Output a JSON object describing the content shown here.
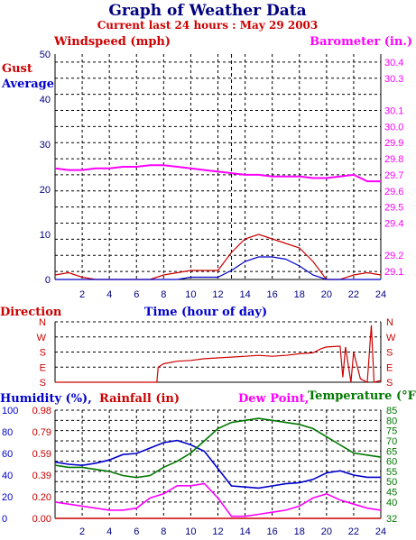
{
  "header": {
    "title": "Graph of Weather Data",
    "subtitle": "Current last 24 hours : May 29 2003"
  },
  "colors": {
    "navy": "#000080",
    "red": "#cc0000",
    "magenta": "#ff00ff",
    "blue": "#0000cc",
    "green": "#007700"
  },
  "chart_data": [
    {
      "type": "line",
      "title": "",
      "left_axis_label": "Windspeed (mph)",
      "right_axis_label": "Barometer (in.)",
      "gust_label": "Gust",
      "average_label": "Average",
      "xlabel": "Time (hour of day)",
      "xlim": [
        0,
        24
      ],
      "xticks": [
        "2",
        "4",
        "6",
        "8",
        "10",
        "12",
        "14",
        "16",
        "18",
        "20",
        "22",
        "24"
      ],
      "ylim_left": [
        0,
        50
      ],
      "yticks_left": [
        "0",
        "10",
        "20",
        "30",
        "40",
        "50"
      ],
      "ylim_right": [
        29.05,
        30.45
      ],
      "yticks_right": [
        "29.1",
        "29.2",
        "29.4",
        "29.5",
        "29.6",
        "29.7",
        "29.8",
        "29.9",
        "30.0",
        "30.1",
        "30.3",
        "30.4"
      ],
      "ytick_values_right": [
        29.1,
        29.2,
        29.3,
        29.4,
        29.5,
        29.6,
        29.7,
        29.8,
        29.9,
        30.0,
        30.1,
        30.2,
        30.3,
        30.4
      ],
      "ytick_labels_right": [
        "29.1",
        "29.2",
        "",
        "29.4",
        "29.5",
        "29.6",
        "29.7",
        "29.8",
        "29.9",
        "30.0",
        "30.1",
        "",
        "30.3",
        "30.4"
      ],
      "current_time": 13,
      "series": [
        {
          "name": "Gust",
          "axis": "left",
          "x": [
            0,
            1,
            2,
            3,
            4,
            5,
            6,
            7,
            8,
            9,
            10,
            11,
            12,
            13,
            14,
            15,
            16,
            17,
            18,
            19,
            20,
            21,
            22,
            23,
            24
          ],
          "values": [
            1,
            1.5,
            0.5,
            0,
            0,
            0,
            0,
            0,
            1,
            1.5,
            2,
            2,
            2,
            6,
            9,
            10,
            9,
            8,
            7,
            4,
            0,
            0,
            1,
            1.5,
            1
          ]
        },
        {
          "name": "Average",
          "axis": "left",
          "x": [
            0,
            1,
            2,
            3,
            4,
            5,
            6,
            7,
            8,
            9,
            10,
            11,
            12,
            13,
            14,
            15,
            16,
            17,
            18,
            19,
            20,
            21,
            22,
            23,
            24
          ],
          "values": [
            0,
            0,
            0,
            0,
            0,
            0,
            0,
            0,
            0,
            0,
            0.5,
            0.5,
            0.5,
            2,
            4,
            5,
            5,
            4.5,
            3,
            1,
            0,
            0,
            0,
            0,
            0
          ]
        },
        {
          "name": "Barometer",
          "axis": "right",
          "x": [
            0,
            1,
            2,
            3,
            4,
            5,
            6,
            7,
            8,
            9,
            10,
            11,
            12,
            13,
            14,
            15,
            16,
            17,
            18,
            19,
            20,
            21,
            22,
            23,
            24
          ],
          "values": [
            29.74,
            29.73,
            29.73,
            29.74,
            29.74,
            29.75,
            29.75,
            29.76,
            29.76,
            29.75,
            29.74,
            29.73,
            29.72,
            29.71,
            29.7,
            29.7,
            29.69,
            29.69,
            29.69,
            29.68,
            29.68,
            29.69,
            29.7,
            29.66,
            29.66
          ]
        }
      ]
    },
    {
      "type": "line",
      "title": "",
      "ylabel": "Direction",
      "yticks": [
        "S",
        "E",
        "S",
        "W",
        "N"
      ],
      "ylim": [
        0,
        360
      ],
      "series": [
        {
          "name": "Direction",
          "x": [
            0,
            7.5,
            7.6,
            8,
            9,
            10,
            11,
            12,
            13,
            14,
            15,
            16,
            17,
            18,
            19,
            19.6,
            20,
            21,
            21.2,
            21.4,
            21.8,
            22,
            22.5,
            23,
            23.3,
            23.5,
            24
          ],
          "values": [
            0,
            0,
            90,
            110,
            125,
            130,
            140,
            145,
            150,
            155,
            160,
            155,
            160,
            170,
            175,
            200,
            210,
            215,
            30,
            210,
            0,
            180,
            20,
            0,
            340,
            0,
            10
          ]
        }
      ]
    },
    {
      "type": "line",
      "title": "",
      "humidity_label": "Humidity (%),",
      "rainfall_label": "Rainfall (in)",
      "dewpoint_label": "Dew Point,",
      "temperature_label": "Temperature (°F)",
      "xlim": [
        0,
        24
      ],
      "xticks": [
        "2",
        "4",
        "6",
        "8",
        "10",
        "12",
        "14",
        "16",
        "18",
        "20",
        "22",
        "24"
      ],
      "ylim_humidity": [
        0,
        100
      ],
      "yticks_humidity": [
        "0",
        "20",
        "40",
        "60",
        "80",
        "100"
      ],
      "yticks_rainfall": [
        "0.00",
        "0.20",
        "0.39",
        "0.59",
        "0.79",
        "0.98"
      ],
      "ylim_temperature": [
        32,
        85
      ],
      "yticks_temperature": [
        "32",
        "40",
        "45",
        "50",
        "55",
        "60",
        "65",
        "70",
        "75",
        "80",
        "85"
      ],
      "series": [
        {
          "name": "Humidity",
          "axis": "humidity",
          "x": [
            0,
            1,
            2,
            3,
            4,
            5,
            6,
            7,
            8,
            9,
            10,
            11,
            12,
            13,
            14,
            15,
            16,
            17,
            18,
            19,
            20,
            21,
            22,
            23,
            24
          ],
          "values": [
            52,
            50,
            49,
            51,
            54,
            59,
            60,
            65,
            70,
            72,
            68,
            62,
            46,
            30,
            29,
            28,
            30,
            32,
            33,
            36,
            42,
            44,
            40,
            38,
            38
          ]
        },
        {
          "name": "Temperature",
          "axis": "temperature",
          "x": [
            0,
            1,
            2,
            3,
            4,
            5,
            6,
            7,
            8,
            9,
            10,
            11,
            12,
            13,
            14,
            15,
            16,
            17,
            18,
            19,
            20,
            21,
            22,
            23,
            24
          ],
          "values": [
            58,
            57,
            57,
            56,
            55,
            53,
            52,
            53,
            57,
            60,
            64,
            70,
            76,
            79,
            80,
            81,
            80,
            79,
            78,
            76,
            72,
            68,
            64,
            63,
            62
          ]
        },
        {
          "name": "Dew Point",
          "axis": "temperature",
          "x": [
            0,
            1,
            2,
            3,
            4,
            5,
            6,
            7,
            8,
            9,
            10,
            11,
            12,
            13,
            14,
            15,
            16,
            17,
            18,
            19,
            20,
            21,
            22,
            23,
            24
          ],
          "values": [
            40,
            39,
            38,
            37,
            36,
            36,
            37,
            42,
            44,
            48,
            48,
            49,
            42,
            33,
            33,
            34,
            35,
            36,
            38,
            42,
            44,
            41,
            39,
            37,
            36
          ]
        },
        {
          "name": "Rainfall",
          "axis": "rainfall",
          "x": [
            0,
            24
          ],
          "values": [
            0,
            0
          ]
        }
      ]
    }
  ]
}
